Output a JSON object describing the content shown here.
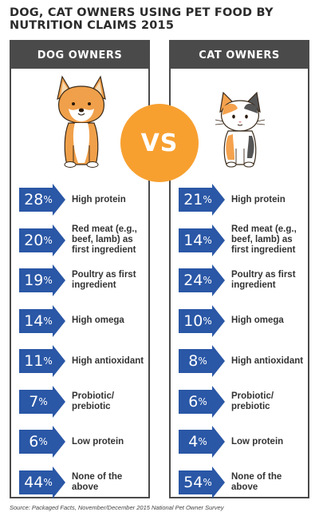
{
  "title": "DOG, CAT OWNERS USING PET FOOD BY NUTRITION CLAIMS 2015",
  "vs_label": "VS",
  "source": "Source: Packaged Facts, November/December 2015 National Pet Owner Survey",
  "colors": {
    "arrow": "#2a57a6",
    "vs_circle": "#f7a030",
    "header": "#4a4a4a"
  },
  "chart_data": [
    {
      "type": "table",
      "title": "DOG OWNERS",
      "categories": [
        "High protein",
        "Red meat (e.g., beef, lamb) as first ingredient",
        "Poultry as first ingredient",
        "High omega",
        "High antioxidant",
        "Probiotic/ prebiotic",
        "Low protein",
        "None of the above"
      ],
      "values": [
        28,
        20,
        19,
        14,
        11,
        7,
        6,
        44
      ],
      "unit": "%"
    },
    {
      "type": "table",
      "title": "CAT OWNERS",
      "categories": [
        "High protein",
        "Red meat (e.g., beef, lamb) as first ingredient",
        "Poultry as first ingredient",
        "High omega",
        "High antioxidant",
        "Probiotic/ prebiotic",
        "Low protein",
        "None of the above"
      ],
      "values": [
        21,
        14,
        24,
        10,
        8,
        6,
        4,
        54
      ],
      "unit": "%"
    }
  ]
}
